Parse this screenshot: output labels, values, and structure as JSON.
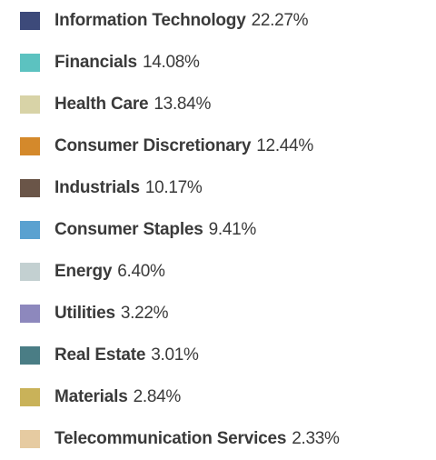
{
  "chart_data": {
    "type": "pie",
    "legend_position": "list",
    "series": [
      {
        "name": "",
        "slices": [
          {
            "label": "Information Technology",
            "value": 22.27,
            "value_label": "22.27%",
            "color": "#3d4a7a"
          },
          {
            "label": "Financials",
            "value": 14.08,
            "value_label": "14.08%",
            "color": "#5cc2c0"
          },
          {
            "label": "Health Care",
            "value": 13.84,
            "value_label": "13.84%",
            "color": "#d8d3a7"
          },
          {
            "label": "Consumer Discretionary",
            "value": 12.44,
            "value_label": "12.44%",
            "color": "#d4892b"
          },
          {
            "label": "Industrials",
            "value": 10.17,
            "value_label": "10.17%",
            "color": "#6a5548"
          },
          {
            "label": "Consumer Staples",
            "value": 9.41,
            "value_label": "9.41%",
            "color": "#5aa1d0"
          },
          {
            "label": "Energy",
            "value": 6.4,
            "value_label": "6.40%",
            "color": "#c3d0d1"
          },
          {
            "label": "Utilities",
            "value": 3.22,
            "value_label": "3.22%",
            "color": "#8d88bd"
          },
          {
            "label": "Real Estate",
            "value": 3.01,
            "value_label": "3.01%",
            "color": "#4a7d85"
          },
          {
            "label": "Materials",
            "value": 2.84,
            "value_label": "2.84%",
            "color": "#c9b259"
          },
          {
            "label": "Telecommunication Services",
            "value": 2.33,
            "value_label": "2.33%",
            "color": "#e6cba1"
          }
        ]
      }
    ]
  }
}
